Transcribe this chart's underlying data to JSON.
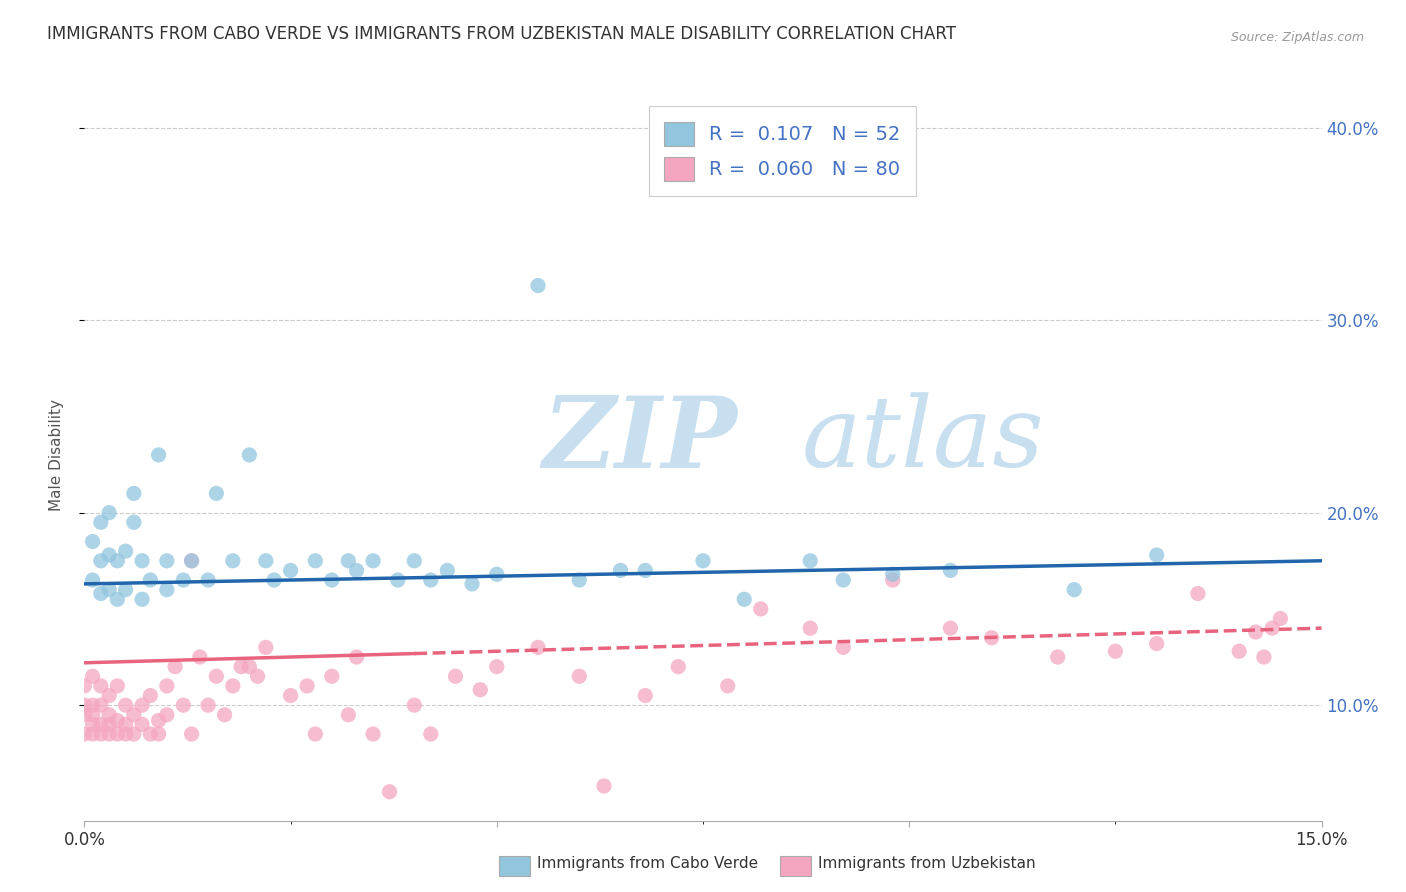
{
  "title": "IMMIGRANTS FROM CABO VERDE VS IMMIGRANTS FROM UZBEKISTAN MALE DISABILITY CORRELATION CHART",
  "source": "Source: ZipAtlas.com",
  "ylabel": "Male Disability",
  "xlim": [
    0.0,
    0.15
  ],
  "ylim": [
    0.04,
    0.42
  ],
  "yticks": [
    0.1,
    0.2,
    0.3,
    0.4
  ],
  "ytick_labels": [
    "10.0%",
    "20.0%",
    "30.0%",
    "40.0%"
  ],
  "xticks": [
    0.0,
    0.05,
    0.1,
    0.15
  ],
  "xtick_labels": [
    "0.0%",
    "",
    "",
    "15.0%"
  ],
  "cabo_verde_R": 0.107,
  "cabo_verde_N": 52,
  "uzbekistan_R": 0.06,
  "uzbekistan_N": 80,
  "cabo_verde_color": "#92c5de",
  "uzbekistan_color": "#f4a6c0",
  "cabo_verde_line_color": "#2166ac",
  "uzbekistan_line_color": "#e8637e",
  "background_color": "#ffffff",
  "cabo_verde_line_y0": 0.163,
  "cabo_verde_line_y1": 0.175,
  "uzbekistan_line_y0": 0.122,
  "uzbekistan_line_y1": 0.14,
  "cabo_verde_scatter_x": [
    0.001,
    0.001,
    0.002,
    0.002,
    0.002,
    0.003,
    0.003,
    0.003,
    0.004,
    0.004,
    0.005,
    0.005,
    0.006,
    0.006,
    0.007,
    0.007,
    0.008,
    0.009,
    0.01,
    0.01,
    0.012,
    0.013,
    0.015,
    0.016,
    0.018,
    0.02,
    0.022,
    0.023,
    0.025,
    0.028,
    0.03,
    0.032,
    0.033,
    0.035,
    0.038,
    0.04,
    0.042,
    0.044,
    0.047,
    0.05,
    0.055,
    0.06,
    0.065,
    0.068,
    0.075,
    0.08,
    0.088,
    0.092,
    0.098,
    0.105,
    0.12,
    0.13
  ],
  "cabo_verde_scatter_y": [
    0.165,
    0.185,
    0.158,
    0.175,
    0.195,
    0.16,
    0.178,
    0.2,
    0.155,
    0.175,
    0.16,
    0.18,
    0.195,
    0.21,
    0.155,
    0.175,
    0.165,
    0.23,
    0.16,
    0.175,
    0.165,
    0.175,
    0.165,
    0.21,
    0.175,
    0.23,
    0.175,
    0.165,
    0.17,
    0.175,
    0.165,
    0.175,
    0.17,
    0.175,
    0.165,
    0.175,
    0.165,
    0.17,
    0.163,
    0.168,
    0.318,
    0.165,
    0.17,
    0.17,
    0.175,
    0.155,
    0.175,
    0.165,
    0.168,
    0.17,
    0.16,
    0.178
  ],
  "uzbekistan_scatter_x": [
    0.0,
    0.0,
    0.0,
    0.0,
    0.001,
    0.001,
    0.001,
    0.001,
    0.001,
    0.002,
    0.002,
    0.002,
    0.002,
    0.003,
    0.003,
    0.003,
    0.003,
    0.004,
    0.004,
    0.004,
    0.005,
    0.005,
    0.005,
    0.006,
    0.006,
    0.007,
    0.007,
    0.008,
    0.008,
    0.009,
    0.009,
    0.01,
    0.01,
    0.011,
    0.012,
    0.013,
    0.013,
    0.014,
    0.015,
    0.016,
    0.017,
    0.018,
    0.019,
    0.02,
    0.021,
    0.022,
    0.025,
    0.027,
    0.028,
    0.03,
    0.032,
    0.033,
    0.035,
    0.037,
    0.04,
    0.042,
    0.045,
    0.048,
    0.05,
    0.055,
    0.06,
    0.063,
    0.068,
    0.072,
    0.078,
    0.082,
    0.088,
    0.092,
    0.098,
    0.105,
    0.11,
    0.118,
    0.125,
    0.13,
    0.135,
    0.14,
    0.142,
    0.143,
    0.144,
    0.145
  ],
  "uzbekistan_scatter_y": [
    0.085,
    0.095,
    0.1,
    0.11,
    0.085,
    0.09,
    0.095,
    0.1,
    0.115,
    0.085,
    0.09,
    0.1,
    0.11,
    0.085,
    0.09,
    0.095,
    0.105,
    0.085,
    0.092,
    0.11,
    0.085,
    0.09,
    0.1,
    0.085,
    0.095,
    0.09,
    0.1,
    0.085,
    0.105,
    0.085,
    0.092,
    0.095,
    0.11,
    0.12,
    0.1,
    0.085,
    0.175,
    0.125,
    0.1,
    0.115,
    0.095,
    0.11,
    0.12,
    0.12,
    0.115,
    0.13,
    0.105,
    0.11,
    0.085,
    0.115,
    0.095,
    0.125,
    0.085,
    0.055,
    0.1,
    0.085,
    0.115,
    0.108,
    0.12,
    0.13,
    0.115,
    0.058,
    0.105,
    0.12,
    0.11,
    0.15,
    0.14,
    0.13,
    0.165,
    0.14,
    0.135,
    0.125,
    0.128,
    0.132,
    0.158,
    0.128,
    0.138,
    0.125,
    0.14,
    0.145
  ]
}
